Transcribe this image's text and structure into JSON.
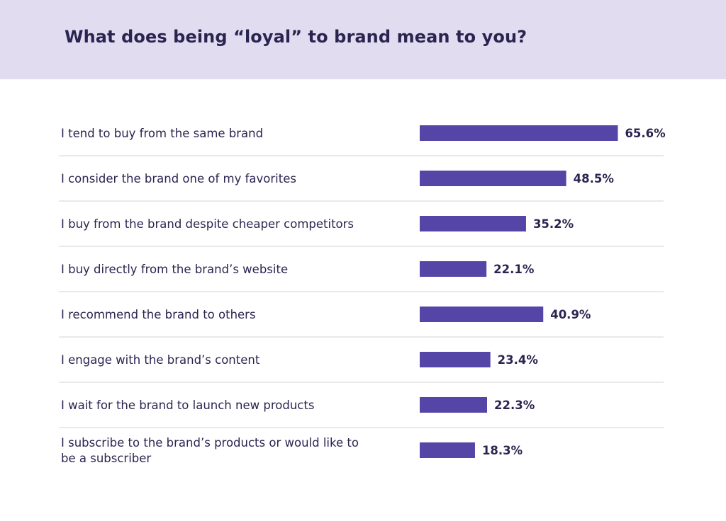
{
  "header": {
    "title": "What does being “loyal” to brand mean to you?"
  },
  "colors": {
    "bar": "#5445a6",
    "header_bg": "#e2dcf0",
    "text": "#2a2550",
    "value_text": "#2a2550",
    "divider": "#d3d3d3"
  },
  "chart_data": {
    "type": "bar",
    "orientation": "horizontal",
    "unit": "%",
    "grid": false,
    "legend": "none",
    "title": "What does being “loyal” to brand mean to you?",
    "categories": [
      "I tend to buy from the same brand",
      "I consider the brand one of my favorites",
      "I buy from the brand despite cheaper competitors",
      "I buy directly from the brand’s website",
      "I recommend the brand to others",
      "I engage with the brand’s content",
      "I wait for the brand to launch new products",
      "I subscribe to the brand’s products or would like to be a subscriber"
    ],
    "values": [
      65.6,
      48.5,
      35.2,
      22.1,
      40.9,
      23.4,
      22.3,
      18.3
    ],
    "value_labels": [
      "65.6%",
      "48.5%",
      "35.2%",
      "22.1%",
      "40.9%",
      "23.4%",
      "22.3%",
      "18.3%"
    ]
  }
}
